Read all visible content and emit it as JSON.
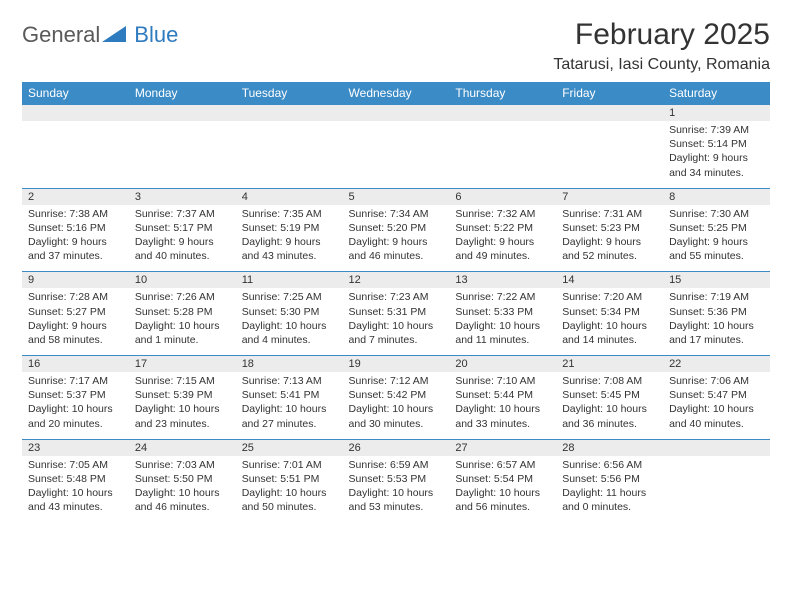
{
  "logo": {
    "text1": "General",
    "text2": "Blue"
  },
  "title": "February 2025",
  "location": "Tatarusi, Iasi County, Romania",
  "colors": {
    "header_bg": "#3b8bc6",
    "daynum_bg": "#ececec",
    "row_border": "#3b8bc6",
    "text": "#333333",
    "logo_gray": "#5a5a5a",
    "logo_blue": "#2f7bbf"
  },
  "weekdays": [
    "Sunday",
    "Monday",
    "Tuesday",
    "Wednesday",
    "Thursday",
    "Friday",
    "Saturday"
  ],
  "weeks": [
    [
      null,
      null,
      null,
      null,
      null,
      null,
      {
        "d": "1",
        "sr": "Sunrise: 7:39 AM",
        "ss": "Sunset: 5:14 PM",
        "dl": "Daylight: 9 hours and 34 minutes."
      }
    ],
    [
      {
        "d": "2",
        "sr": "Sunrise: 7:38 AM",
        "ss": "Sunset: 5:16 PM",
        "dl": "Daylight: 9 hours and 37 minutes."
      },
      {
        "d": "3",
        "sr": "Sunrise: 7:37 AM",
        "ss": "Sunset: 5:17 PM",
        "dl": "Daylight: 9 hours and 40 minutes."
      },
      {
        "d": "4",
        "sr": "Sunrise: 7:35 AM",
        "ss": "Sunset: 5:19 PM",
        "dl": "Daylight: 9 hours and 43 minutes."
      },
      {
        "d": "5",
        "sr": "Sunrise: 7:34 AM",
        "ss": "Sunset: 5:20 PM",
        "dl": "Daylight: 9 hours and 46 minutes."
      },
      {
        "d": "6",
        "sr": "Sunrise: 7:32 AM",
        "ss": "Sunset: 5:22 PM",
        "dl": "Daylight: 9 hours and 49 minutes."
      },
      {
        "d": "7",
        "sr": "Sunrise: 7:31 AM",
        "ss": "Sunset: 5:23 PM",
        "dl": "Daylight: 9 hours and 52 minutes."
      },
      {
        "d": "8",
        "sr": "Sunrise: 7:30 AM",
        "ss": "Sunset: 5:25 PM",
        "dl": "Daylight: 9 hours and 55 minutes."
      }
    ],
    [
      {
        "d": "9",
        "sr": "Sunrise: 7:28 AM",
        "ss": "Sunset: 5:27 PM",
        "dl": "Daylight: 9 hours and 58 minutes."
      },
      {
        "d": "10",
        "sr": "Sunrise: 7:26 AM",
        "ss": "Sunset: 5:28 PM",
        "dl": "Daylight: 10 hours and 1 minute."
      },
      {
        "d": "11",
        "sr": "Sunrise: 7:25 AM",
        "ss": "Sunset: 5:30 PM",
        "dl": "Daylight: 10 hours and 4 minutes."
      },
      {
        "d": "12",
        "sr": "Sunrise: 7:23 AM",
        "ss": "Sunset: 5:31 PM",
        "dl": "Daylight: 10 hours and 7 minutes."
      },
      {
        "d": "13",
        "sr": "Sunrise: 7:22 AM",
        "ss": "Sunset: 5:33 PM",
        "dl": "Daylight: 10 hours and 11 minutes."
      },
      {
        "d": "14",
        "sr": "Sunrise: 7:20 AM",
        "ss": "Sunset: 5:34 PM",
        "dl": "Daylight: 10 hours and 14 minutes."
      },
      {
        "d": "15",
        "sr": "Sunrise: 7:19 AM",
        "ss": "Sunset: 5:36 PM",
        "dl": "Daylight: 10 hours and 17 minutes."
      }
    ],
    [
      {
        "d": "16",
        "sr": "Sunrise: 7:17 AM",
        "ss": "Sunset: 5:37 PM",
        "dl": "Daylight: 10 hours and 20 minutes."
      },
      {
        "d": "17",
        "sr": "Sunrise: 7:15 AM",
        "ss": "Sunset: 5:39 PM",
        "dl": "Daylight: 10 hours and 23 minutes."
      },
      {
        "d": "18",
        "sr": "Sunrise: 7:13 AM",
        "ss": "Sunset: 5:41 PM",
        "dl": "Daylight: 10 hours and 27 minutes."
      },
      {
        "d": "19",
        "sr": "Sunrise: 7:12 AM",
        "ss": "Sunset: 5:42 PM",
        "dl": "Daylight: 10 hours and 30 minutes."
      },
      {
        "d": "20",
        "sr": "Sunrise: 7:10 AM",
        "ss": "Sunset: 5:44 PM",
        "dl": "Daylight: 10 hours and 33 minutes."
      },
      {
        "d": "21",
        "sr": "Sunrise: 7:08 AM",
        "ss": "Sunset: 5:45 PM",
        "dl": "Daylight: 10 hours and 36 minutes."
      },
      {
        "d": "22",
        "sr": "Sunrise: 7:06 AM",
        "ss": "Sunset: 5:47 PM",
        "dl": "Daylight: 10 hours and 40 minutes."
      }
    ],
    [
      {
        "d": "23",
        "sr": "Sunrise: 7:05 AM",
        "ss": "Sunset: 5:48 PM",
        "dl": "Daylight: 10 hours and 43 minutes."
      },
      {
        "d": "24",
        "sr": "Sunrise: 7:03 AM",
        "ss": "Sunset: 5:50 PM",
        "dl": "Daylight: 10 hours and 46 minutes."
      },
      {
        "d": "25",
        "sr": "Sunrise: 7:01 AM",
        "ss": "Sunset: 5:51 PM",
        "dl": "Daylight: 10 hours and 50 minutes."
      },
      {
        "d": "26",
        "sr": "Sunrise: 6:59 AM",
        "ss": "Sunset: 5:53 PM",
        "dl": "Daylight: 10 hours and 53 minutes."
      },
      {
        "d": "27",
        "sr": "Sunrise: 6:57 AM",
        "ss": "Sunset: 5:54 PM",
        "dl": "Daylight: 10 hours and 56 minutes."
      },
      {
        "d": "28",
        "sr": "Sunrise: 6:56 AM",
        "ss": "Sunset: 5:56 PM",
        "dl": "Daylight: 11 hours and 0 minutes."
      },
      null
    ]
  ]
}
